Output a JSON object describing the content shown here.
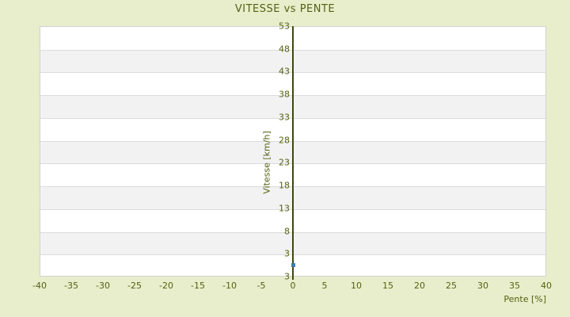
{
  "page": {
    "background_color": "#e8eecb"
  },
  "chart_data": {
    "type": "scatter",
    "title": "VITESSE vs PENTE",
    "xlabel": "Pente [%]",
    "ylabel": "Vitesse [km/h]",
    "x_tick_labels": [
      "-40",
      "-35",
      "-30",
      "-25",
      "-20",
      "-15",
      "-10",
      "-5",
      "0",
      "5",
      "10",
      "15",
      "20",
      "25",
      "30",
      "35",
      "40"
    ],
    "y_tick_labels": [
      "53",
      "48",
      "43",
      "38",
      "33",
      "28",
      "23",
      "18",
      "13",
      "8",
      "3",
      "3"
    ],
    "xlim": [
      -40,
      40
    ],
    "ylim": [
      -2,
      53
    ],
    "y_tick_step": 5,
    "grid": "horizontal-stripes-per-5-units",
    "legend": "none",
    "zero_axis": {
      "at_x": 0
    },
    "series": [
      {
        "name": "Vitesse",
        "marker": "square",
        "color": "#3d7eab",
        "points": [
          {
            "x": 0,
            "y": 0.5
          }
        ]
      }
    ]
  },
  "colors": {
    "background": "#e8eecb",
    "text": "#556014",
    "plot_bg": "#ffffff",
    "band_alt": "#f2f2f2",
    "grid_line": "#dcdcdc",
    "plot_border": "#d2d2d2",
    "axis_line": "#3e4a0a",
    "point": "#3d7eab"
  }
}
